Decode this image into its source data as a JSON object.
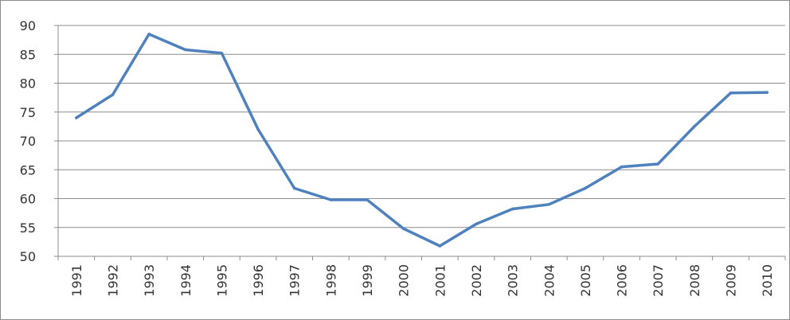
{
  "chart_data": {
    "type": "line",
    "title": "",
    "xlabel": "",
    "ylabel": "",
    "categories": [
      "1991",
      "1992",
      "1993",
      "1994",
      "1995",
      "1996",
      "1997",
      "1998",
      "1999",
      "2000",
      "2001",
      "2002",
      "2003",
      "2004",
      "2005",
      "2006",
      "2007",
      "2008",
      "2009",
      "2010"
    ],
    "series": [
      {
        "values": [
          74,
          78,
          88.5,
          85.8,
          85.2,
          72,
          61.8,
          59.8,
          59.8,
          54.8,
          51.8,
          55.6,
          58.2,
          59,
          61.8,
          65.5,
          66,
          72.5,
          78.3,
          78.4
        ],
        "color": "#4f81bd"
      }
    ],
    "ylim": [
      50,
      90
    ],
    "yticks": [
      "50",
      "55",
      "60",
      "65",
      "70",
      "75",
      "80",
      "85",
      "90"
    ],
    "grid": "horizontal",
    "legend": "none"
  }
}
